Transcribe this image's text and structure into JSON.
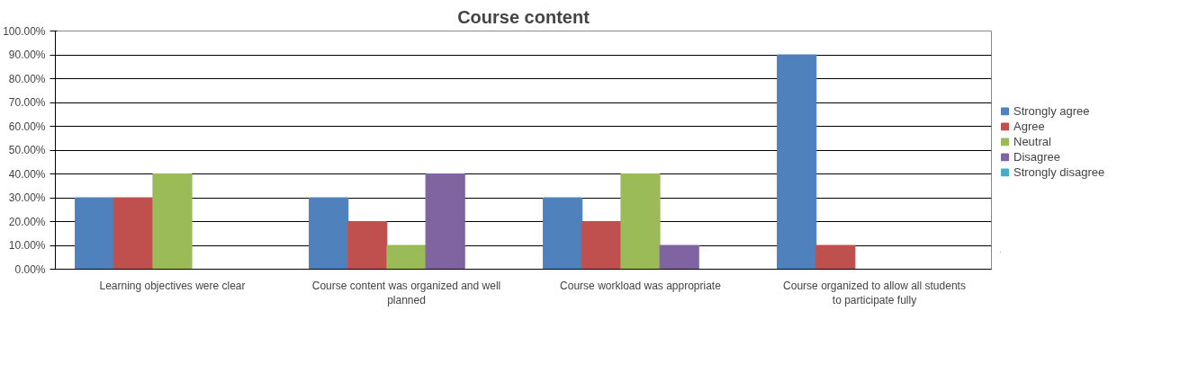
{
  "chart_data": {
    "type": "bar",
    "title": "Course content",
    "categories": [
      "Learning objectives were clear",
      "Course content was organized and well planned",
      "Course workload was appropriate",
      "Course organized to allow all students to participate fully"
    ],
    "series": [
      {
        "name": "Strongly agree",
        "color": "#4f81bd",
        "values": [
          30,
          30,
          30,
          90
        ]
      },
      {
        "name": "Agree",
        "color": "#c0504d",
        "values": [
          30,
          20,
          20,
          10
        ]
      },
      {
        "name": "Neutral",
        "color": "#9bbb59",
        "values": [
          40,
          10,
          40,
          0
        ]
      },
      {
        "name": "Disagree",
        "color": "#8064a2",
        "values": [
          0,
          40,
          10,
          0
        ]
      },
      {
        "name": "Strongly disagree",
        "color": "#4bacc6",
        "values": [
          0,
          0,
          0,
          0
        ]
      }
    ],
    "ylim": [
      0,
      100
    ],
    "yticks": [
      {
        "value": 0,
        "label": "0.00%"
      },
      {
        "value": 10,
        "label": "10.00%"
      },
      {
        "value": 20,
        "label": "20.00%"
      },
      {
        "value": 30,
        "label": "30.00%"
      },
      {
        "value": 40,
        "label": "40.00%"
      },
      {
        "value": 50,
        "label": "50.00%"
      },
      {
        "value": 60,
        "label": "60.00%"
      },
      {
        "value": 70,
        "label": "70.00%"
      },
      {
        "value": 80,
        "label": "80.00%"
      },
      {
        "value": 90,
        "label": "90.00%"
      },
      {
        "value": 100,
        "label": "100.00%"
      }
    ],
    "grid": "y",
    "legend": "right"
  }
}
